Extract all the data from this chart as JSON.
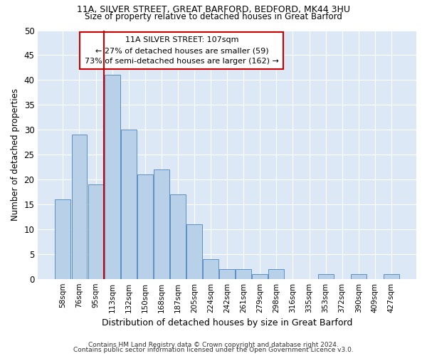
{
  "title1": "11A, SILVER STREET, GREAT BARFORD, BEDFORD, MK44 3HU",
  "title2": "Size of property relative to detached houses in Great Barford",
  "xlabel": "Distribution of detached houses by size in Great Barford",
  "ylabel": "Number of detached properties",
  "categories": [
    "58sqm",
    "76sqm",
    "95sqm",
    "113sqm",
    "132sqm",
    "150sqm",
    "168sqm",
    "187sqm",
    "205sqm",
    "224sqm",
    "242sqm",
    "261sqm",
    "279sqm",
    "298sqm",
    "316sqm",
    "335sqm",
    "353sqm",
    "372sqm",
    "390sqm",
    "409sqm",
    "427sqm"
  ],
  "values": [
    16,
    29,
    19,
    41,
    30,
    21,
    22,
    17,
    11,
    4,
    2,
    2,
    1,
    2,
    0,
    0,
    1,
    0,
    1,
    0,
    1
  ],
  "bar_color": "#b8d0e8",
  "bar_edge_color": "#5b8fc4",
  "annotation_line1": "11A SILVER STREET: 107sqm",
  "annotation_line2": "← 27% of detached houses are smaller (59)",
  "annotation_line3": "73% of semi-detached houses are larger (162) →",
  "vline_color": "#cc0000",
  "ylim": [
    0,
    50
  ],
  "yticks": [
    0,
    5,
    10,
    15,
    20,
    25,
    30,
    35,
    40,
    45,
    50
  ],
  "bg_color": "#dce8f5",
  "grid_color": "#ffffff",
  "footer1": "Contains HM Land Registry data © Crown copyright and database right 2024.",
  "footer2": "Contains public sector information licensed under the Open Government Licence v3.0."
}
